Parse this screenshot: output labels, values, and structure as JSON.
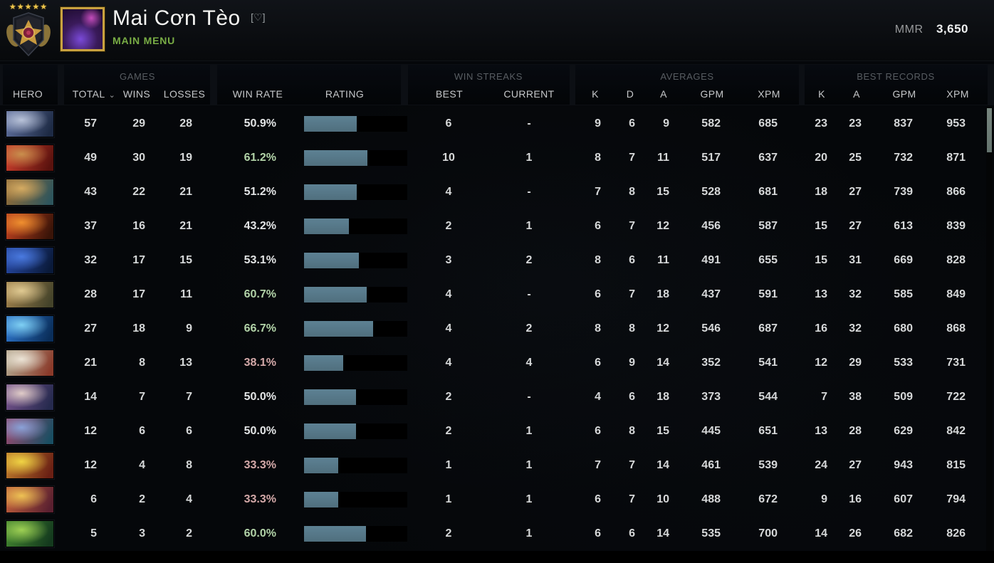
{
  "header": {
    "player_name": "Mai Cơn Tèo",
    "favorite_tag": "[♡]",
    "subtitle": "MAIN MENU",
    "rank_medal": "legend-medal-5-stars",
    "rank_stars": "★★★★★",
    "mmr_label": "MMR",
    "mmr_value": "3,650"
  },
  "table": {
    "group_labels": {
      "games": "GAMES",
      "streaks": "WIN STREAKS",
      "averages": "AVERAGES",
      "records": "BEST RECORDS"
    },
    "columns": {
      "hero": "HERO",
      "total": "TOTAL",
      "total_sort_indicator": "⌄",
      "wins": "WINS",
      "losses": "LOSSES",
      "win_rate": "WIN RATE",
      "rating": "RATING",
      "best": "BEST",
      "current": "CURRENT",
      "k": "K",
      "d": "D",
      "a": "A",
      "gpm": "GPM",
      "xpm": "XPM",
      "record_k": "K",
      "record_a": "A",
      "record_gpm": "GPM",
      "record_xpm": "XPM"
    },
    "rows": [
      {
        "hero": "drow-ranger",
        "portrait": [
          "#b9c3d9",
          "#5a6a96",
          "#1d2a44"
        ],
        "total": "57",
        "wins": "29",
        "losses": "28",
        "win_rate": "50.9%",
        "win_rate_value": 50.9,
        "tone": "neutral",
        "best": "6",
        "current": "-",
        "k": "9",
        "d": "6",
        "a": "9",
        "gpm": "582",
        "xpm": "685",
        "record_k": "23",
        "record_a": "23",
        "record_gpm": "837",
        "record_xpm": "953"
      },
      {
        "hero": "bloodseeker",
        "portrait": [
          "#c98f4d",
          "#c23b2a",
          "#5a120e"
        ],
        "total": "49",
        "wins": "30",
        "losses": "19",
        "win_rate": "61.2%",
        "win_rate_value": 61.2,
        "tone": "pos",
        "best": "10",
        "current": "1",
        "k": "8",
        "d": "7",
        "a": "11",
        "gpm": "517",
        "xpm": "637",
        "record_k": "20",
        "record_a": "25",
        "record_gpm": "732",
        "record_xpm": "871"
      },
      {
        "hero": "bristleback",
        "portrait": [
          "#d5ab62",
          "#8a6a3a",
          "#2e555c"
        ],
        "total": "43",
        "wins": "22",
        "losses": "21",
        "win_rate": "51.2%",
        "win_rate_value": 51.2,
        "tone": "neutral",
        "best": "4",
        "current": "-",
        "k": "7",
        "d": "8",
        "a": "15",
        "gpm": "528",
        "xpm": "681",
        "record_k": "18",
        "record_a": "27",
        "record_gpm": "739",
        "record_xpm": "866"
      },
      {
        "hero": "batrider",
        "portrait": [
          "#f0902f",
          "#b33d1d",
          "#3a1408"
        ],
        "total": "37",
        "wins": "16",
        "losses": "21",
        "win_rate": "43.2%",
        "win_rate_value": 43.2,
        "tone": "neutral",
        "best": "2",
        "current": "1",
        "k": "6",
        "d": "7",
        "a": "12",
        "gpm": "456",
        "xpm": "587",
        "record_k": "15",
        "record_a": "27",
        "record_gpm": "613",
        "record_xpm": "839"
      },
      {
        "hero": "night-stalker",
        "portrait": [
          "#4a7ae0",
          "#24449a",
          "#0a1a3a"
        ],
        "total": "32",
        "wins": "17",
        "losses": "15",
        "win_rate": "53.1%",
        "win_rate_value": 53.1,
        "tone": "neutral",
        "best": "3",
        "current": "2",
        "k": "8",
        "d": "6",
        "a": "11",
        "gpm": "491",
        "xpm": "655",
        "record_k": "15",
        "record_a": "31",
        "record_gpm": "669",
        "record_xpm": "828"
      },
      {
        "hero": "sand-king",
        "portrait": [
          "#e0ca92",
          "#9a7d4a",
          "#44432a"
        ],
        "total": "28",
        "wins": "17",
        "losses": "11",
        "win_rate": "60.7%",
        "win_rate_value": 60.7,
        "tone": "pos",
        "best": "4",
        "current": "-",
        "k": "6",
        "d": "7",
        "a": "18",
        "gpm": "437",
        "xpm": "591",
        "record_k": "13",
        "record_a": "32",
        "record_gpm": "585",
        "record_xpm": "849"
      },
      {
        "hero": "razor",
        "portrait": [
          "#7fd0f4",
          "#2a6ec0",
          "#0a2e5a"
        ],
        "total": "27",
        "wins": "18",
        "losses": "9",
        "win_rate": "66.7%",
        "win_rate_value": 66.7,
        "tone": "pos",
        "best": "4",
        "current": "2",
        "k": "8",
        "d": "8",
        "a": "12",
        "gpm": "546",
        "xpm": "687",
        "record_k": "16",
        "record_a": "32",
        "record_gpm": "680",
        "record_xpm": "868"
      },
      {
        "hero": "tusk",
        "portrait": [
          "#ece4d6",
          "#b0a088",
          "#8a3a2a"
        ],
        "total": "21",
        "wins": "8",
        "losses": "13",
        "win_rate": "38.1%",
        "win_rate_value": 38.1,
        "tone": "neg",
        "best": "4",
        "current": "4",
        "k": "6",
        "d": "9",
        "a": "14",
        "gpm": "352",
        "xpm": "541",
        "record_k": "12",
        "record_a": "29",
        "record_gpm": "533",
        "record_xpm": "731"
      },
      {
        "hero": "mirana",
        "portrait": [
          "#e0ccc8",
          "#6e4e86",
          "#262a4e"
        ],
        "total": "14",
        "wins": "7",
        "losses": "7",
        "win_rate": "50.0%",
        "win_rate_value": 50.0,
        "tone": "neutral",
        "best": "2",
        "current": "-",
        "k": "4",
        "d": "6",
        "a": "18",
        "gpm": "373",
        "xpm": "544",
        "record_k": "7",
        "record_a": "38",
        "record_gpm": "509",
        "record_xpm": "722"
      },
      {
        "hero": "slardar",
        "portrait": [
          "#8aa2d8",
          "#8a4a6e",
          "#1a4e62"
        ],
        "total": "12",
        "wins": "6",
        "losses": "6",
        "win_rate": "50.0%",
        "win_rate_value": 50.0,
        "tone": "neutral",
        "best": "2",
        "current": "1",
        "k": "6",
        "d": "8",
        "a": "15",
        "gpm": "445",
        "xpm": "651",
        "record_k": "13",
        "record_a": "28",
        "record_gpm": "629",
        "record_xpm": "842"
      },
      {
        "hero": "bounty-hunter",
        "portrait": [
          "#f0d444",
          "#b8742a",
          "#6a2014"
        ],
        "total": "12",
        "wins": "4",
        "losses": "8",
        "win_rate": "33.3%",
        "win_rate_value": 33.3,
        "tone": "neg",
        "best": "1",
        "current": "1",
        "k": "7",
        "d": "7",
        "a": "14",
        "gpm": "461",
        "xpm": "539",
        "record_k": "24",
        "record_a": "27",
        "record_gpm": "943",
        "record_xpm": "815"
      },
      {
        "hero": "legion-commander",
        "portrait": [
          "#eec254",
          "#b85a3a",
          "#5a2030"
        ],
        "total": "6",
        "wins": "2",
        "losses": "4",
        "win_rate": "33.3%",
        "win_rate_value": 33.3,
        "tone": "neg",
        "best": "1",
        "current": "1",
        "k": "6",
        "d": "7",
        "a": "10",
        "gpm": "488",
        "xpm": "672",
        "record_k": "9",
        "record_a": "16",
        "record_gpm": "607",
        "record_xpm": "794"
      },
      {
        "hero": "venomancer",
        "portrait": [
          "#9ed054",
          "#3e7e2e",
          "#143a1e"
        ],
        "total": "5",
        "wins": "3",
        "losses": "2",
        "win_rate": "60.0%",
        "win_rate_value": 60.0,
        "tone": "pos",
        "best": "2",
        "current": "1",
        "k": "6",
        "d": "6",
        "a": "14",
        "gpm": "535",
        "xpm": "700",
        "record_k": "14",
        "record_a": "26",
        "record_gpm": "682",
        "record_xpm": "826"
      }
    ]
  },
  "colors": {
    "accent_green": "#79ad45",
    "win_rate_positive": "#b2d3a8",
    "win_rate_negative": "#d4a9a9",
    "win_rate_neutral": "#e3e5e6",
    "rating_bar_fill": "#567988",
    "rating_bar_empty": "#000000",
    "scrollbar_thumb": "#6f7e7a",
    "rank_star_gold": "#edc64d"
  }
}
